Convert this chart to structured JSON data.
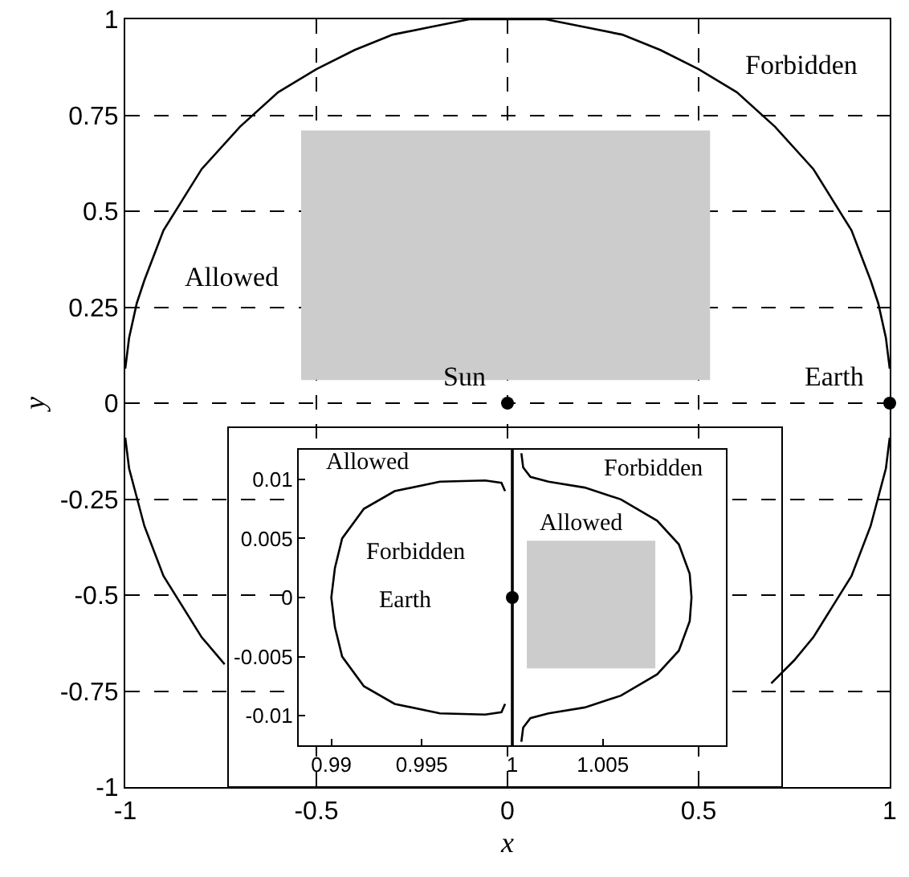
{
  "chart_data": [
    {
      "type": "line",
      "xlabel": "x",
      "ylabel": "y",
      "xlim": [
        -1,
        1
      ],
      "ylim": [
        -1,
        1
      ],
      "xticks": [
        -1,
        -0.5,
        0,
        0.5,
        1
      ],
      "yticks": [
        -1,
        -0.75,
        -0.5,
        -0.25,
        0,
        0.25,
        0.5,
        0.75,
        1
      ],
      "grid": true,
      "marker": "none",
      "series": [
        {
          "type": "area",
          "color": "#cccccc",
          "x": [
            -0.54,
            0.53,
            0.53,
            -0.54,
            -0.54
          ],
          "values": [
            0.06,
            0.06,
            0.71,
            0.71,
            0.06
          ]
        },
        {
          "color": "#000000",
          "x": [
            -1,
            -0.99,
            -0.97,
            -0.95,
            -0.9,
            -0.85,
            -0.8,
            -0.7,
            -0.6,
            -0.5,
            -0.4,
            -0.3,
            -0.2,
            -0.1,
            0,
            0.1,
            0.2,
            0.3,
            0.4,
            0.5,
            0.6,
            0.7,
            0.8,
            0.85,
            0.9,
            0.95,
            0.97,
            0.99,
            1
          ],
          "values": [
            0.09,
            0.17,
            0.26,
            0.32,
            0.45,
            0.53,
            0.61,
            0.72,
            0.81,
            0.87,
            0.92,
            0.96,
            0.98,
            1.0,
            1.0,
            1.0,
            0.98,
            0.96,
            0.92,
            0.87,
            0.81,
            0.72,
            0.61,
            0.53,
            0.45,
            0.32,
            0.26,
            0.17,
            0.09
          ]
        },
        {
          "color": "#000000",
          "x": [
            -1,
            -0.99,
            -0.95,
            -0.9,
            -0.85,
            -0.8,
            -0.74
          ],
          "values": [
            -0.09,
            -0.17,
            -0.32,
            -0.45,
            -0.53,
            -0.61,
            -0.68
          ]
        },
        {
          "color": "#000000",
          "x": [
            0.69,
            0.75,
            0.8,
            0.85,
            0.9,
            0.95,
            0.99,
            1
          ],
          "values": [
            -0.73,
            -0.67,
            -0.61,
            -0.53,
            -0.45,
            -0.32,
            -0.17,
            -0.09
          ]
        },
        {
          "type": "scatter",
          "marker": "circle",
          "color": "#000000",
          "x": [
            0,
            1
          ],
          "values": [
            0,
            0
          ]
        }
      ],
      "annotations": [
        "Forbidden",
        "Allowed",
        "Sun",
        "Earth"
      ]
    },
    {
      "type": "line",
      "xlim": [
        0.9882,
        1.0118
      ],
      "ylim": [
        -0.0125,
        0.0125
      ],
      "xticks": [
        0.99,
        0.995,
        1,
        1.005
      ],
      "yticks": [
        -0.01,
        -0.005,
        0,
        0.005,
        0.01
      ],
      "marker": "none",
      "series": [
        {
          "type": "area",
          "color": "#cccccc",
          "x": [
            1.0008,
            1.0079,
            1.0079,
            1.0008,
            1.0008
          ],
          "values": [
            -0.006,
            -0.006,
            0.0048,
            0.0048,
            -0.006
          ]
        },
        {
          "color": "#000000",
          "x": [
            0.9996,
            0.9994,
            0.9985,
            0.996,
            0.9935,
            0.9918,
            0.9906,
            0.9902,
            0.99,
            0.9902,
            0.9906,
            0.9918,
            0.9935,
            0.996,
            0.9985,
            0.9994,
            0.9996
          ],
          "values": [
            0.009,
            0.0097,
            0.0099,
            0.0098,
            0.009,
            0.0075,
            0.005,
            0.0025,
            0,
            -0.0025,
            -0.005,
            -0.0075,
            -0.009,
            -0.0098,
            -0.0099,
            -0.0097,
            -0.009
          ]
        },
        {
          "color": "#000000",
          "x": [
            1.0005,
            1.0006,
            1.001,
            1.002,
            1.004,
            1.006,
            1.008,
            1.0092,
            1.0098,
            1.0099,
            1.0098,
            1.0092,
            1.008,
            1.006,
            1.004,
            1.002,
            1.001,
            1.0006,
            1.0005
          ],
          "values": [
            0.0122,
            0.011,
            0.0102,
            0.0098,
            0.0093,
            0.0083,
            0.0065,
            0.0045,
            0.002,
            0,
            -0.002,
            -0.0045,
            -0.0065,
            -0.0083,
            -0.0093,
            -0.0098,
            -0.0102,
            -0.011,
            -0.0122
          ]
        },
        {
          "type": "scatter",
          "marker": "circle",
          "color": "#000000",
          "x": [
            1
          ],
          "values": [
            0
          ]
        }
      ],
      "ref_lines": [
        {
          "axis": "x",
          "value": 1,
          "color": "#000000"
        }
      ],
      "annotations": [
        "Allowed",
        "Forbidden",
        "Forbidden",
        "Allowed",
        "Earth"
      ]
    }
  ]
}
